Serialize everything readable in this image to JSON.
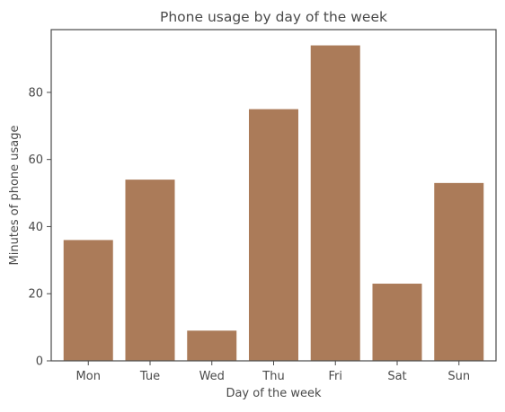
{
  "chart_data": {
    "type": "bar",
    "title": "Phone usage by day of the week",
    "xlabel": "Day of the week",
    "ylabel": "Minutes of phone usage",
    "categories": [
      "Mon",
      "Tue",
      "Wed",
      "Thu",
      "Fri",
      "Sat",
      "Sun"
    ],
    "values": [
      36,
      54,
      9,
      75,
      94,
      23,
      53
    ],
    "ylim": [
      0,
      98.7
    ],
    "yticks": [
      0,
      20,
      40,
      60,
      80
    ],
    "grid": false,
    "bar_color": "#ab7b59",
    "axis_color": "#4a4a4a"
  }
}
